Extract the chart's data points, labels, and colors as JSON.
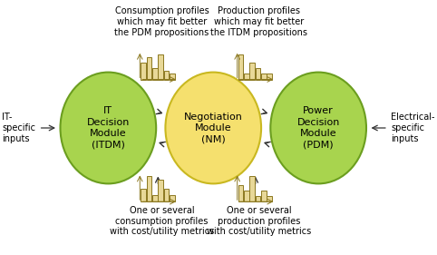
{
  "bg_color": "#ffffff",
  "circle_left_color": "#a8d44e",
  "circle_left_edge_color": "#6b9e1f",
  "circle_mid_color": "#f5e06e",
  "circle_mid_edge_color": "#c9b820",
  "circle_right_color": "#a8d44e",
  "circle_right_edge_color": "#6b9e1f",
  "circle_lw": 1.5,
  "label_left": "IT\nDecision\nModule\n(ITDM)",
  "label_mid": "Negotiation\nModule\n(NM)",
  "label_right": "Power\nDecision\nModule\n(PDM)",
  "text_top_left": "Consumption profiles\nwhich may fit better\nthe PDM propositions",
  "text_top_right": "Production profiles\nwhich may fit better\nthe ITDM propositions",
  "text_bot_left": "One or several\nconsumption profiles\nwith cost/utility metrics",
  "text_bot_right": "One or several\nproduction profiles\nwith cost/utility metrics",
  "text_it_inputs": "IT-\nspecific\ninputs",
  "text_elec_inputs": "Electrical-\nspecific\ninputs",
  "hist_fill": "#e8d898",
  "hist_edge": "#8b7820",
  "arrow_color": "#333333",
  "font_size_circles": 8,
  "font_size_labels": 7,
  "font_size_side": 7
}
